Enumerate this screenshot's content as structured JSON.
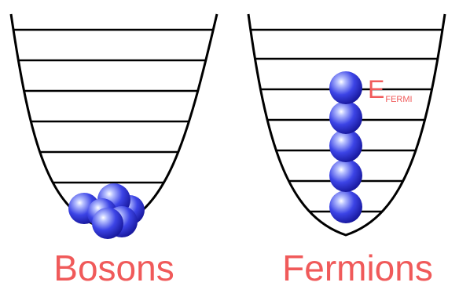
{
  "colors": {
    "line": "#000000",
    "label": "#f05a5a",
    "particle_light": "#b9c2ff",
    "particle_mid": "#3c44e6",
    "particle_dark": "#16169a"
  },
  "bosons": {
    "label": "Bosons",
    "level_count": 7,
    "particle_count": 6
  },
  "fermions": {
    "label": "Fermions",
    "level_count": 7,
    "particle_count": 5,
    "fermi_label_main": "E",
    "fermi_label_sub": "FERMI"
  }
}
